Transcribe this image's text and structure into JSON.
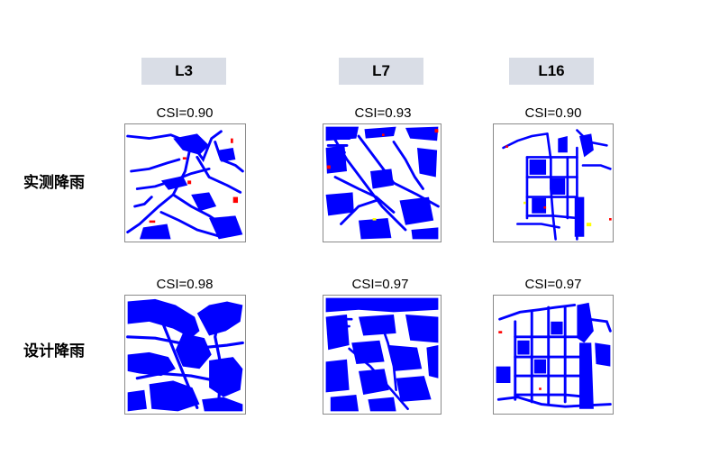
{
  "columns": [
    {
      "label": "L3"
    },
    {
      "label": "L7"
    },
    {
      "label": "L16"
    }
  ],
  "rows": [
    {
      "label": "实测降雨",
      "csi": [
        "CSI=0.90",
        "CSI=0.93",
        "CSI=0.90"
      ]
    },
    {
      "label": "设计降雨",
      "csi": [
        "CSI=0.98",
        "CSI=0.97",
        "CSI=0.97"
      ]
    }
  ],
  "colors": {
    "flood": "#0000ff",
    "false_alarm": "#ff0000",
    "miss": "#ffff00",
    "header_bg": "#d9dde6"
  }
}
